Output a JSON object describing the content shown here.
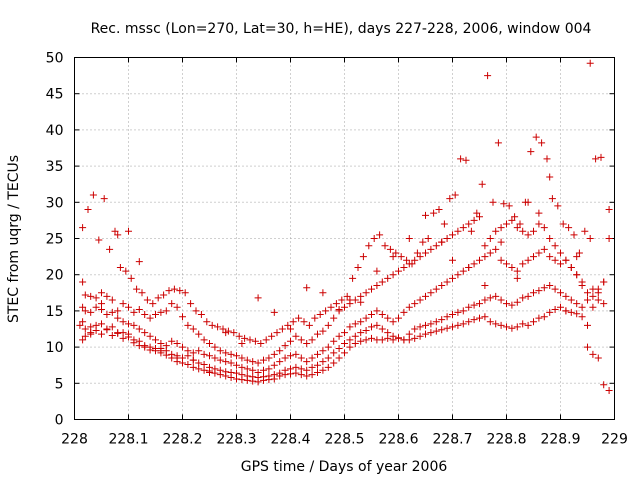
{
  "chart_data": {
    "type": "scatter",
    "title": "Rec. mssc (Lon=270, Lat=30, h=HE), days 227-228, 2006, window 004",
    "xlabel": "GPS time / Days of year 2006",
    "ylabel": "STEC from uqrg / TECUs",
    "xlim": [
      228,
      229
    ],
    "ylim": [
      0,
      50
    ],
    "xticks": [
      "228",
      "228.1",
      "228.2",
      "228.3",
      "228.4",
      "228.5",
      "228.6",
      "228.7",
      "228.8",
      "228.9",
      "229"
    ],
    "yticks": [
      "0",
      "5",
      "10",
      "15",
      "20",
      "25",
      "30",
      "35",
      "40",
      "45",
      "50"
    ],
    "grid": true,
    "marker": "+",
    "color": "#cc0000",
    "series": [
      {
        "x": [
          228.015,
          228.02,
          228.03,
          228.04,
          228.05,
          228.06,
          228.07,
          228.08,
          228.09,
          228.1,
          228.11,
          228.12,
          228.13,
          228.14,
          228.15,
          228.16,
          228.17,
          228.18,
          228.19,
          228.2,
          228.21,
          228.22,
          228.23,
          228.24,
          228.25,
          228.26,
          228.27,
          228.28,
          228.29,
          228.3,
          228.31,
          228.32,
          228.33,
          228.34,
          228.35,
          228.36,
          228.37,
          228.38,
          228.39,
          228.4,
          228.41,
          228.42,
          228.43,
          228.44,
          228.45,
          228.46,
          228.47,
          228.48,
          228.49,
          228.5,
          228.51,
          228.52,
          228.53,
          228.54,
          228.55,
          228.56,
          228.57,
          228.58,
          228.59,
          228.6,
          228.61,
          228.62,
          228.63,
          228.64,
          228.65,
          228.66,
          228.67,
          228.68,
          228.69,
          228.7,
          228.71,
          228.72,
          228.73,
          228.74,
          228.75,
          228.76,
          228.77,
          228.78,
          228.79,
          228.8,
          228.81,
          228.82,
          228.83,
          228.84,
          228.85,
          228.86,
          228.87,
          228.88,
          228.89,
          228.9,
          228.91,
          228.92,
          228.93,
          228.94,
          228.95,
          228.96,
          228.97,
          228.98,
          228.99
        ],
        "y": [
          11.0,
          11.5,
          12.0,
          12.3,
          11.8,
          12.4,
          11.6,
          11.9,
          11.2,
          11.4,
          10.6,
          10.2,
          10.0,
          9.6,
          9.8,
          9.2,
          8.9,
          8.5,
          8.0,
          7.8,
          7.6,
          7.2,
          7.0,
          6.8,
          6.7,
          6.4,
          6.2,
          6.0,
          5.8,
          5.6,
          5.5,
          5.4,
          5.3,
          5.2,
          5.4,
          5.5,
          5.6,
          6.0,
          6.2,
          6.3,
          6.4,
          6.2,
          6.0,
          6.2,
          6.5,
          6.8,
          7.2,
          7.8,
          8.5,
          9.2,
          10.0,
          10.5,
          10.8,
          11.0,
          11.2,
          11.0,
          11.0,
          11.2,
          11.0,
          11.3,
          11.0,
          11.0,
          11.2,
          11.5,
          11.8,
          12.0,
          12.2,
          12.4,
          12.6,
          12.8,
          13.0,
          13.2,
          13.5,
          13.8,
          14.0,
          14.2,
          13.5,
          13.2,
          13.0,
          12.8,
          12.6,
          12.8,
          13.2,
          13.0,
          13.5,
          14.0,
          14.2,
          14.8,
          15.2,
          15.5,
          15.0,
          14.8,
          14.6,
          14.2,
          10.0,
          9.0,
          8.5,
          4.8,
          4.0
        ]
      },
      {
        "x": [
          228.015,
          228.02,
          228.03,
          228.04,
          228.05,
          228.06,
          228.07,
          228.08,
          228.09,
          228.1,
          228.11,
          228.12,
          228.13,
          228.14,
          228.15,
          228.16,
          228.17,
          228.18,
          228.19,
          228.2,
          228.21,
          228.22,
          228.23,
          228.24,
          228.25,
          228.26,
          228.27,
          228.28,
          228.29,
          228.3,
          228.31,
          228.32,
          228.33,
          228.34,
          228.35,
          228.36,
          228.37,
          228.38,
          228.39,
          228.4,
          228.41,
          228.42,
          228.43,
          228.44,
          228.45,
          228.46,
          228.47,
          228.48,
          228.49,
          228.5,
          228.51,
          228.52,
          228.53,
          228.54,
          228.55,
          228.56,
          228.57,
          228.58,
          228.59,
          228.6,
          228.61,
          228.62,
          228.63,
          228.64,
          228.65,
          228.66,
          228.67,
          228.68,
          228.69,
          228.7,
          228.71,
          228.72,
          228.73,
          228.74,
          228.75,
          228.76,
          228.77,
          228.78,
          228.79,
          228.8,
          228.81,
          228.82,
          228.83,
          228.84,
          228.85,
          228.86,
          228.87,
          228.88,
          228.89,
          228.9,
          228.91,
          228.92,
          228.93,
          228.94,
          228.95,
          228.96,
          228.97,
          228.98
        ],
        "y": [
          13.5,
          12.5,
          12.8,
          13.0,
          13.2,
          12.5,
          12.8,
          12.0,
          12.0,
          11.8,
          11.0,
          10.8,
          10.2,
          10.0,
          9.5,
          9.8,
          9.5,
          9.0,
          8.8,
          8.5,
          8.8,
          8.2,
          7.8,
          7.6,
          7.2,
          7.0,
          6.8,
          6.6,
          6.5,
          6.4,
          6.2,
          6.0,
          5.9,
          5.8,
          5.9,
          6.0,
          6.2,
          6.4,
          6.8,
          7.0,
          7.2,
          7.0,
          6.8,
          7.2,
          7.5,
          8.0,
          8.5,
          9.2,
          9.8,
          10.5,
          11.0,
          11.5,
          12.0,
          12.3,
          12.8,
          13.0,
          12.5,
          12.0,
          11.5,
          11.2,
          11.0,
          11.8,
          12.5,
          12.8,
          13.0,
          13.2,
          13.5,
          13.8,
          14.2,
          14.5,
          14.8,
          15.0,
          15.5,
          15.8,
          16.0,
          16.5,
          16.8,
          17.0,
          16.5,
          16.0,
          15.8,
          16.2,
          16.8,
          17.0,
          17.5,
          17.8,
          18.2,
          18.5,
          18.0,
          17.5,
          17.0,
          16.5,
          16.0,
          15.5,
          13.0,
          15.5,
          17.5,
          19.0
        ]
      },
      {
        "x": [
          228.015,
          228.02,
          228.03,
          228.04,
          228.05,
          228.06,
          228.07,
          228.08,
          228.09,
          228.1,
          228.11,
          228.12,
          228.13,
          228.14,
          228.15,
          228.16,
          228.17,
          228.18,
          228.19,
          228.2,
          228.21,
          228.22,
          228.23,
          228.24,
          228.25,
          228.26,
          228.27,
          228.28,
          228.29,
          228.3,
          228.31,
          228.32,
          228.33,
          228.34,
          228.35,
          228.36,
          228.37,
          228.38,
          228.39,
          228.4,
          228.41,
          228.42,
          228.43,
          228.44,
          228.45,
          228.46,
          228.47,
          228.48,
          228.49,
          228.5,
          228.51,
          228.52,
          228.53,
          228.54,
          228.55,
          228.56,
          228.57,
          228.58,
          228.59,
          228.6,
          228.61,
          228.62,
          228.63,
          228.64,
          228.65,
          228.66,
          228.67,
          228.68,
          228.69,
          228.7,
          228.71,
          228.72,
          228.73,
          228.74,
          228.75,
          228.76,
          228.77,
          228.78,
          228.79,
          228.8,
          228.81,
          228.82,
          228.83,
          228.84,
          228.85,
          228.86,
          228.87,
          228.88,
          228.89,
          228.9,
          228.91,
          228.92,
          228.93,
          228.94,
          228.95,
          228.96,
          228.97,
          228.98,
          228.99
        ],
        "y": [
          15.5,
          15.0,
          14.8,
          15.5,
          15.2,
          14.5,
          14.8,
          14.0,
          13.5,
          13.2,
          13.0,
          12.5,
          12.0,
          11.5,
          11.0,
          10.5,
          10.2,
          10.8,
          10.5,
          10.0,
          9.5,
          9.2,
          9.5,
          9.0,
          8.8,
          8.5,
          8.2,
          8.0,
          7.8,
          7.5,
          7.2,
          7.0,
          6.8,
          6.5,
          6.8,
          7.0,
          7.5,
          8.0,
          8.5,
          8.8,
          9.0,
          8.5,
          8.0,
          8.5,
          9.0,
          9.5,
          10.0,
          10.8,
          11.5,
          12.0,
          12.8,
          13.2,
          13.5,
          14.0,
          14.5,
          15.0,
          14.5,
          14.0,
          13.5,
          14.0,
          14.8,
          15.5,
          16.0,
          16.5,
          17.0,
          17.5,
          18.0,
          18.5,
          19.0,
          19.5,
          20.0,
          20.5,
          21.0,
          21.5,
          22.0,
          22.5,
          23.0,
          23.5,
          22.0,
          21.5,
          21.0,
          20.5,
          21.5,
          22.0,
          22.5,
          23.0,
          23.5,
          22.5,
          22.0,
          21.5,
          22.0,
          21.0,
          20.0,
          18.5,
          16.5,
          17.0,
          18.0,
          19.0,
          25.0
        ]
      },
      {
        "x": [
          228.015,
          228.02,
          228.03,
          228.04,
          228.05,
          228.06,
          228.07,
          228.08,
          228.09,
          228.1,
          228.11,
          228.12,
          228.13,
          228.14,
          228.15,
          228.16,
          228.17,
          228.18,
          228.19,
          228.2,
          228.21,
          228.22,
          228.23,
          228.24,
          228.25,
          228.26,
          228.27,
          228.28,
          228.29,
          228.3,
          228.31,
          228.32,
          228.33,
          228.34,
          228.35,
          228.36,
          228.37,
          228.38,
          228.39,
          228.4,
          228.41,
          228.42,
          228.43,
          228.44,
          228.45,
          228.46,
          228.47,
          228.48,
          228.49,
          228.5,
          228.51,
          228.52,
          228.53,
          228.54,
          228.55,
          228.56,
          228.57,
          228.58,
          228.59,
          228.6,
          228.61,
          228.62,
          228.63,
          228.64,
          228.65,
          228.66,
          228.67,
          228.68,
          228.69,
          228.7,
          228.71,
          228.72,
          228.73,
          228.74,
          228.75,
          228.76,
          228.77,
          228.78,
          228.79,
          228.8,
          228.81,
          228.82,
          228.83,
          228.84,
          228.85,
          228.86,
          228.87,
          228.88,
          228.89,
          228.9,
          228.91,
          228.92,
          228.93,
          228.94,
          228.95,
          228.96,
          228.97,
          228.98,
          228.99
        ],
        "y": [
          19.0,
          17.2,
          17.0,
          16.8,
          17.5,
          17.0,
          16.5,
          15.0,
          16.0,
          15.5,
          14.8,
          15.2,
          14.5,
          14.0,
          14.5,
          14.8,
          15.0,
          16.0,
          15.5,
          14.2,
          13.0,
          12.5,
          11.8,
          11.0,
          10.5,
          10.0,
          9.5,
          9.2,
          9.0,
          8.8,
          8.5,
          8.2,
          8.0,
          7.8,
          8.2,
          8.5,
          9.0,
          9.5,
          10.2,
          10.8,
          11.5,
          11.0,
          10.5,
          11.0,
          11.8,
          12.2,
          13.0,
          14.0,
          15.0,
          15.5,
          16.0,
          16.5,
          17.0,
          17.5,
          18.0,
          18.5,
          19.0,
          19.5,
          20.0,
          20.5,
          21.0,
          21.5,
          22.0,
          22.5,
          23.0,
          23.5,
          24.0,
          24.5,
          25.0,
          25.5,
          26.0,
          26.5,
          27.0,
          27.5,
          28.0,
          24.0,
          25.0,
          26.0,
          26.5,
          27.0,
          27.5,
          26.5,
          26.0,
          25.5,
          26.0,
          27.0,
          26.5,
          25.0,
          24.0,
          23.0,
          22.0,
          21.0,
          20.0,
          19.0,
          17.5,
          18.0,
          16.5,
          16.0,
          29.0
        ]
      },
      {
        "x": [
          228.015,
          228.025,
          228.035,
          228.045,
          228.055,
          228.065,
          228.075,
          228.085,
          228.095,
          228.105,
          228.115,
          228.125,
          228.135,
          228.145,
          228.155,
          228.165,
          228.175,
          228.185,
          228.195,
          228.205,
          228.215,
          228.225,
          228.235,
          228.245,
          228.255,
          228.265,
          228.275,
          228.285,
          228.295,
          228.305,
          228.315,
          228.325,
          228.335,
          228.345,
          228.355,
          228.365,
          228.375,
          228.385,
          228.395,
          228.405,
          228.415,
          228.425,
          228.435,
          228.445,
          228.455,
          228.465,
          228.475,
          228.485,
          228.495,
          228.505,
          228.515,
          228.525,
          228.535,
          228.545,
          228.555,
          228.565,
          228.575,
          228.585,
          228.595,
          228.605,
          228.615,
          228.625,
          228.635,
          228.645,
          228.655,
          228.665,
          228.675,
          228.685,
          228.695,
          228.705,
          228.715,
          228.725,
          228.735,
          228.745,
          228.755,
          228.765,
          228.775,
          228.785,
          228.795,
          228.805,
          228.815,
          228.825,
          228.835,
          228.845,
          228.855,
          228.865,
          228.875,
          228.885,
          228.895,
          228.905,
          228.915,
          228.925,
          228.935,
          228.945,
          228.955,
          228.965,
          228.975
        ],
        "y": [
          26.5,
          29.0,
          31.0,
          24.8,
          30.5,
          23.5,
          26.0,
          21.0,
          20.5,
          19.5,
          18.0,
          17.5,
          16.5,
          16.0,
          16.8,
          17.2,
          17.8,
          18.0,
          17.8,
          17.5,
          16.0,
          15.0,
          14.5,
          13.5,
          13.0,
          12.8,
          12.5,
          12.2,
          12.0,
          11.5,
          11.2,
          11.0,
          10.8,
          10.5,
          11.0,
          11.5,
          12.0,
          12.5,
          13.0,
          13.5,
          14.0,
          13.5,
          13.0,
          14.0,
          14.5,
          15.0,
          15.5,
          16.0,
          16.5,
          17.0,
          19.5,
          21.0,
          22.5,
          24.0,
          25.0,
          25.5,
          24.0,
          23.5,
          23.0,
          22.5,
          22.0,
          21.5,
          23.0,
          24.5,
          25.0,
          28.5,
          29.0,
          27.0,
          30.5,
          31.0,
          36.0,
          35.8,
          26.0,
          28.5,
          32.5,
          47.5,
          30.0,
          38.2,
          29.8,
          29.5,
          28.0,
          27.0,
          30.0,
          37.0,
          39.0,
          38.2,
          36.0,
          30.5,
          29.5,
          27.0,
          26.5,
          25.5,
          23.0,
          26.0,
          25.0,
          36.0,
          36.2
        ]
      },
      {
        "x": [
          228.01,
          228.03,
          228.05,
          228.08,
          228.1,
          228.12,
          228.16,
          228.19,
          228.22,
          228.25,
          228.28,
          228.31,
          228.34,
          228.37,
          228.4,
          228.43,
          228.46,
          228.49,
          228.51,
          228.53,
          228.56,
          228.59,
          228.62,
          228.65,
          228.68,
          228.7,
          228.73,
          228.76,
          228.79,
          228.82,
          228.84,
          228.86,
          228.88,
          228.91,
          228.93,
          228.955
        ],
        "y": [
          13.0,
          11.8,
          16.0,
          25.5,
          26.0,
          21.8,
          9.5,
          8.5,
          8.2,
          6.5,
          12.0,
          10.5,
          16.8,
          14.8,
          12.5,
          18.2,
          17.5,
          15.2,
          16.5,
          16.2,
          20.5,
          22.5,
          25.0,
          28.2,
          24.5,
          22.0,
          21.0,
          18.5,
          24.5,
          19.5,
          30.0,
          28.5,
          33.5,
          15.0,
          22.5,
          49.2
        ]
      }
    ]
  }
}
